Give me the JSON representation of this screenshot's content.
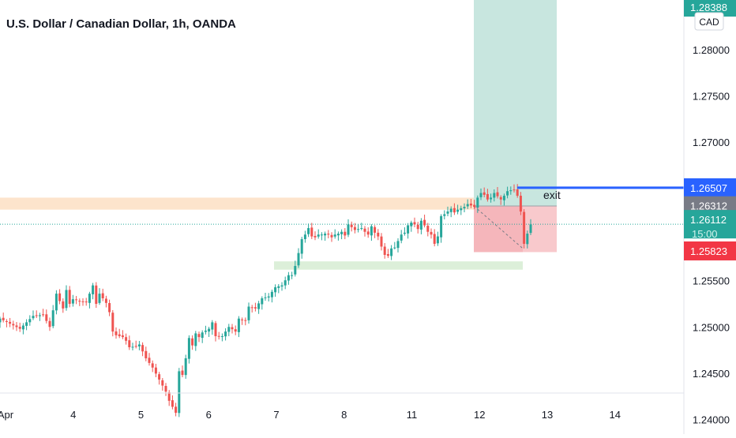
{
  "title": "U.S. Dollar / Canadian Dollar, 1h, OANDA",
  "colors": {
    "up": "#26a69a",
    "down": "#ef5350",
    "profit_zone": "#c8e6df",
    "loss_zone": "#f8c9cc",
    "resistance_zone": "#fde4cc",
    "support_zone": "#dcefd9",
    "exit_line": "#2962ff",
    "current_price": "#26a69a",
    "stop_price": "#f23645",
    "entry_price": "#787b86"
  },
  "chart_data": {
    "type": "candlestick",
    "symbol": "U.S. Dollar / Canadian Dollar",
    "interval": "1h",
    "source": "OANDA",
    "currency": "CAD",
    "ylim": [
      1.2384,
      1.2854
    ],
    "x_ticks": [
      "Apr",
      "4",
      "5",
      "6",
      "7",
      "8",
      "11",
      "12",
      "13",
      "14"
    ],
    "y_ticks": [
      "1.24000",
      "1.24500",
      "1.25000",
      "1.25500",
      "1.27000",
      "1.27500",
      "1.28000"
    ],
    "path": [
      [
        0,
        1.2509
      ],
      [
        6,
        1.2498
      ],
      [
        10,
        1.2512
      ],
      [
        13,
        1.2513
      ],
      [
        15,
        1.25
      ],
      [
        17,
        1.2536
      ],
      [
        19,
        1.252
      ],
      [
        20,
        1.254
      ],
      [
        21,
        1.2525
      ],
      [
        22,
        1.253
      ],
      [
        24,
        1.2528
      ],
      [
        26,
        1.2527
      ],
      [
        28,
        1.2545
      ],
      [
        29,
        1.2525
      ],
      [
        30,
        1.2536
      ],
      [
        32,
        1.2526
      ],
      [
        33,
        1.2516
      ],
      [
        34,
        1.2495
      ],
      [
        35,
        1.2491
      ],
      [
        37,
        1.2489
      ],
      [
        38,
        1.2485
      ],
      [
        39,
        1.2478
      ],
      [
        41,
        1.2479
      ],
      [
        42,
        1.2481
      ],
      [
        44,
        1.2466
      ],
      [
        46,
        1.2456
      ],
      [
        48,
        1.2443
      ],
      [
        50,
        1.243
      ],
      [
        51,
        1.242
      ],
      [
        53,
        1.2407
      ],
      [
        54,
        1.2452
      ],
      [
        55,
        1.2448
      ],
      [
        56,
        1.2466
      ],
      [
        57,
        1.2488
      ],
      [
        58,
        1.248
      ],
      [
        59,
        1.2493
      ],
      [
        60,
        1.2489
      ],
      [
        61,
        1.2494
      ],
      [
        63,
        1.2498
      ],
      [
        64,
        1.2505
      ],
      [
        65,
        1.249
      ],
      [
        67,
        1.249
      ],
      [
        69,
        1.25
      ],
      [
        71,
        1.2495
      ],
      [
        72,
        1.2509
      ],
      [
        74,
        1.2507
      ],
      [
        75,
        1.2522
      ],
      [
        77,
        1.252
      ],
      [
        79,
        1.2531
      ],
      [
        81,
        1.2533
      ],
      [
        83,
        1.2543
      ],
      [
        85,
        1.2545
      ],
      [
        87,
        1.2556
      ],
      [
        88,
        1.2556
      ],
      [
        89,
        1.2566
      ],
      [
        90,
        1.258
      ],
      [
        91,
        1.2595
      ],
      [
        92,
        1.26
      ],
      [
        93,
        1.2607
      ],
      [
        94,
        1.2598
      ],
      [
        95,
        1.2597
      ],
      [
        96,
        1.26
      ],
      [
        97,
        1.26
      ],
      [
        98,
        1.2601
      ],
      [
        99,
        1.26
      ],
      [
        100,
        1.2597
      ],
      [
        101,
        1.26
      ],
      [
        102,
        1.2601
      ],
      [
        103,
        1.2603
      ],
      [
        104,
        1.2599
      ],
      [
        105,
        1.2611
      ],
      [
        107,
        1.2605
      ],
      [
        109,
        1.2607
      ],
      [
        110,
        1.2603
      ],
      [
        111,
        1.26
      ],
      [
        112,
        1.2609
      ],
      [
        113,
        1.2602
      ],
      [
        114,
        1.2598
      ],
      [
        115,
        1.2587
      ],
      [
        116,
        1.2578
      ],
      [
        117,
        1.2577
      ],
      [
        118,
        1.2585
      ],
      [
        119,
        1.2586
      ],
      [
        121,
        1.26
      ],
      [
        122,
        1.2602
      ],
      [
        123,
        1.261
      ],
      [
        124,
        1.2613
      ],
      [
        125,
        1.2611
      ],
      [
        126,
        1.2606
      ],
      [
        127,
        1.2615
      ],
      [
        128,
        1.261
      ],
      [
        129,
        1.2603
      ],
      [
        130,
        1.26
      ],
      [
        131,
        1.259
      ],
      [
        132,
        1.2598
      ],
      [
        133,
        1.262
      ],
      [
        134,
        1.2622
      ],
      [
        135,
        1.2625
      ],
      [
        136,
        1.2628
      ],
      [
        137,
        1.2624
      ],
      [
        138,
        1.2627
      ],
      [
        140,
        1.263
      ],
      [
        141,
        1.2633
      ],
      [
        143,
        1.263
      ],
      [
        144,
        1.264
      ],
      [
        145,
        1.2645
      ],
      [
        146,
        1.2643
      ],
      [
        147,
        1.2638
      ],
      [
        148,
        1.264
      ],
      [
        149,
        1.2645
      ],
      [
        151,
        1.2638
      ],
      [
        152,
        1.2642
      ],
      [
        153,
        1.2647
      ],
      [
        154,
        1.2648
      ],
      [
        155,
        1.2648
      ],
      [
        156,
        1.2642
      ],
      [
        157,
        1.2625
      ],
      [
        158,
        1.259
      ],
      [
        159,
        1.2601
      ],
      [
        160,
        1.2611
      ]
    ],
    "price_labels": [
      {
        "name": "take-profit",
        "text": "1.28388",
        "kind": "current_price"
      },
      {
        "name": "exit-line",
        "text": "1.26507",
        "kind": "exit_line"
      },
      {
        "name": "entry",
        "text": "1.26312",
        "kind": "entry_price"
      },
      {
        "name": "current",
        "text": "1.26112",
        "sub": "15:00",
        "kind": "current_price"
      },
      {
        "name": "stop",
        "text": "1.25823",
        "kind": "stop_price"
      }
    ],
    "annotations": {
      "exit_label": "exit",
      "resistance_zone": [
        1.2627,
        1.264
      ],
      "support_zone": [
        1.2562,
        1.2571
      ],
      "profit_zone": [
        1.2631,
        1.2854
      ],
      "loss_zone": [
        1.2581,
        1.2631
      ],
      "exit_price": 1.26507,
      "current_price": 1.26112
    }
  }
}
